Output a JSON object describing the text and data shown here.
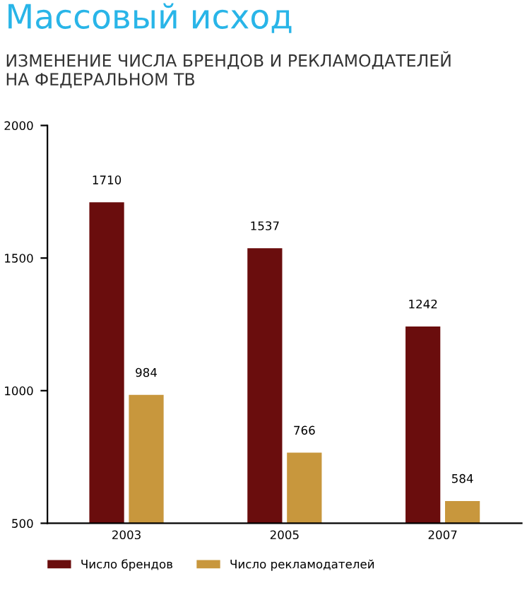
{
  "chart_data": {
    "type": "bar",
    "title": "Массовый исход",
    "subtitle": "ИЗМЕНЕНИЕ ЧИСЛА БРЕНДОВ И РЕКЛАМОДАТЕЛЕЙ\nНА ФЕДЕРАЛЬНОМ ТВ",
    "categories": [
      "2003",
      "2005",
      "2007"
    ],
    "series": [
      {
        "name": "Число брендов",
        "color": "#6a0d0d",
        "values": [
          1710,
          1537,
          1242
        ]
      },
      {
        "name": "Число рекламодателей",
        "color": "#c8973d",
        "values": [
          984,
          766,
          584
        ]
      }
    ],
    "ylim": [
      500,
      2000
    ],
    "yticks": [
      500,
      1000,
      1500,
      2000
    ],
    "grid": false,
    "legend": "bottom left",
    "data_labels": true
  }
}
